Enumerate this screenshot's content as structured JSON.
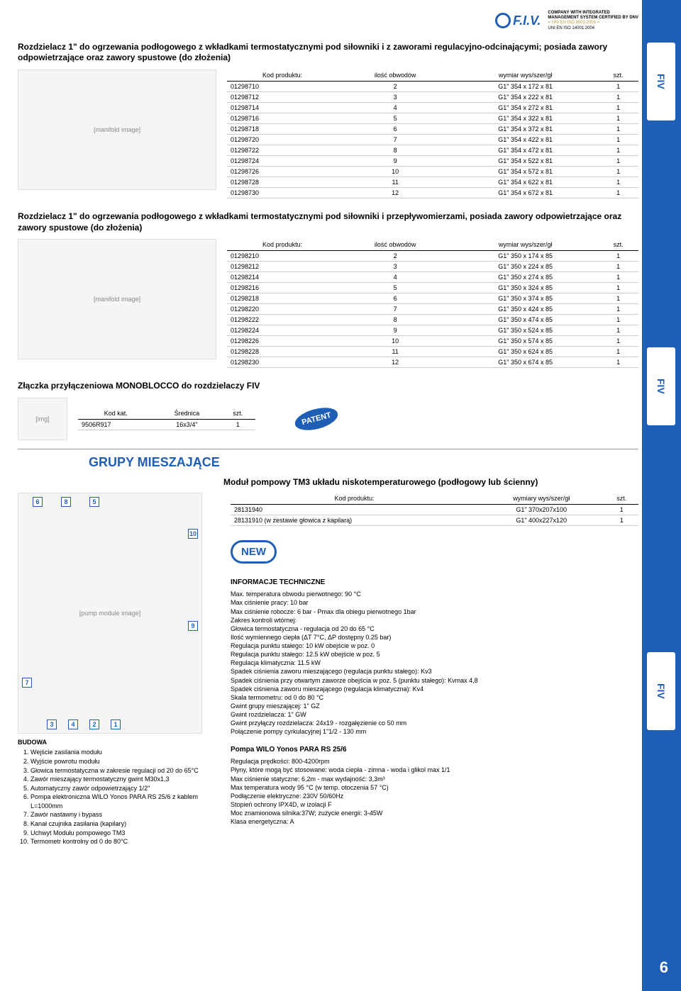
{
  "header": {
    "logo_text": "F.I.V.",
    "cert_line1": "COMPANY WITH INTEGRATED",
    "cert_line2": "MANAGEMENT SYSTEM CERTIFIED BY DNV",
    "cert_iso1": "= UNI EN ISO 9001:2008 =",
    "cert_iso2": "UNI EN ISO 14001:2004"
  },
  "page_number": "6",
  "section1": {
    "title": "Rozdzielacz 1\" do ogrzewania podłogowego z wkładkami termostatycznymi pod siłowniki i z zaworami regulacyjno-odcinającymi; posiada zawory odpowietrzające oraz zawory spustowe (do złożenia)",
    "headers": {
      "kod": "Kod produktu:",
      "ilosc": "ilość obwodów",
      "wymiar": "wymiar wys/szer/gł",
      "szt": "szt."
    },
    "rows": [
      {
        "kod": "01298710",
        "il": "2",
        "wy": "G1\" 354 x 172 x 81",
        "s": "1"
      },
      {
        "kod": "01298712",
        "il": "3",
        "wy": "G1\" 354 x 222 x 81",
        "s": "1"
      },
      {
        "kod": "01298714",
        "il": "4",
        "wy": "G1\" 354 x 272 x 81",
        "s": "1"
      },
      {
        "kod": "01298716",
        "il": "5",
        "wy": "G1\" 354 x 322 x 81",
        "s": "1"
      },
      {
        "kod": "01298718",
        "il": "6",
        "wy": "G1\" 354 x 372 x 81",
        "s": "1"
      },
      {
        "kod": "01298720",
        "il": "7",
        "wy": "G1\" 354 x 422 x 81",
        "s": "1"
      },
      {
        "kod": "01298722",
        "il": "8",
        "wy": "G1\" 354 x 472 x 81",
        "s": "1"
      },
      {
        "kod": "01298724",
        "il": "9",
        "wy": "G1\" 354 x 522 x 81",
        "s": "1"
      },
      {
        "kod": "01298726",
        "il": "10",
        "wy": "G1\" 354 x 572 x 81",
        "s": "1"
      },
      {
        "kod": "01298728",
        "il": "11",
        "wy": "G1\" 354 x 622 x 81",
        "s": "1"
      },
      {
        "kod": "01298730",
        "il": "12",
        "wy": "G1\" 354 x 672 x 81",
        "s": "1"
      }
    ]
  },
  "section2": {
    "title": "Rozdzielacz 1\" do ogrzewania podłogowego z wkładkami termostatycznymi pod siłowniki i przepływomierzami, posiada zawory odpowietrzające oraz zawory spustowe (do złożenia)",
    "headers": {
      "kod": "Kod produktu:",
      "ilosc": "ilość obwodów",
      "wymiar": "wymiar wys/szer/gł",
      "szt": "szt."
    },
    "rows": [
      {
        "kod": "01298210",
        "il": "2",
        "wy": "G1\" 350 x 174 x 85",
        "s": "1"
      },
      {
        "kod": "01298212",
        "il": "3",
        "wy": "G1\" 350 x 224 x 85",
        "s": "1"
      },
      {
        "kod": "01298214",
        "il": "4",
        "wy": "G1\" 350 x 274 x 85",
        "s": "1"
      },
      {
        "kod": "01298216",
        "il": "5",
        "wy": "G1\" 350 x 324 x 85",
        "s": "1"
      },
      {
        "kod": "01298218",
        "il": "6",
        "wy": "G1\" 350 x 374 x 85",
        "s": "1"
      },
      {
        "kod": "01298220",
        "il": "7",
        "wy": "G1\" 350 x 424 x 85",
        "s": "1"
      },
      {
        "kod": "01298222",
        "il": "8",
        "wy": "G1\" 350 x 474 x 85",
        "s": "1"
      },
      {
        "kod": "01298224",
        "il": "9",
        "wy": "G1\" 350 x 524 x 85",
        "s": "1"
      },
      {
        "kod": "01298226",
        "il": "10",
        "wy": "G1\" 350 x 574 x 85",
        "s": "1"
      },
      {
        "kod": "01298228",
        "il": "11",
        "wy": "G1\" 350 x 624 x 85",
        "s": "1"
      },
      {
        "kod": "01298230",
        "il": "12",
        "wy": "G1\" 350 x 674 x 85",
        "s": "1"
      }
    ]
  },
  "monoblocco": {
    "title": "Złączka przyłączeniowa MONOBLOCCO do rozdzielaczy FIV",
    "headers": {
      "kod": "Kod kat.",
      "sr": "Średnica",
      "szt": "szt."
    },
    "row": {
      "kod": "9506R917",
      "sr": "16x3/4\"",
      "szt": "1"
    },
    "patent": "PATENT"
  },
  "grupy": {
    "heading": "GRUPY MIESZAJĄCE",
    "module_title": "Moduł pompowy TM3 układu niskotemperaturowego (podłogowy lub ścienny)",
    "headers": {
      "kod": "Kod produktu:",
      "wy": "wymiary wys/szer/gł",
      "szt": "szt."
    },
    "rows": [
      {
        "kod": "28131940",
        "wy": "G1\" 370x207x100",
        "s": "1"
      },
      {
        "kod": "28131910 (w zestawie głowica z kapilarą)",
        "wy": "G1\" 400x227x120",
        "s": "1"
      }
    ],
    "new_label": "NEW",
    "callouts": [
      "6",
      "8",
      "5",
      "10",
      "9",
      "7",
      "3",
      "4",
      "2",
      "1"
    ],
    "budowa_title": "BUDOWA",
    "budowa_items": [
      "Wejście zasilania modułu",
      "Wyjście powrotu modułu",
      "Głowica termostatyczna w zakresie regulacji od 20 do 65°C",
      "Zawór mieszający termostatyczny gwint M30x1,3",
      "Automatyczny zawór odpowietrzający 1/2\"",
      "Pompa elektroniczna WILO Yonos PARA RS 25/6 z kablem L=1000mm",
      "Zawór nastawny i bypass",
      "Kanał czujnika zasilania (kapilary)",
      "Uchwyt Modułu pompowego TM3",
      "Termometr kontrolny od 0 do 80°C"
    ],
    "info_title": "INFORMACJE TECHNICZNE",
    "info_lines": [
      "Max. temperatura obwodu pierwotnego: 90 °C",
      "Max ciśnienie pracy: 10 bar",
      "Max ciśnienie robocze: 6 bar - Pmax dla obiegu pierwotnego 1bar",
      "Zakres kontroli wtórnej:",
      "Głowica termostatyczna - regulacja od 20 do 65 °C",
      "Ilość wymiennego ciepła (ΔT 7°C, ΔP dostępny 0.25 bar)",
      "Regulacja punktu stałego: 10 kW obejście w poz. 0",
      "Regulacja punktu stałego: 12.5 kW obejście w poz. 5",
      "Regulacja klimatyczna: 11.5 kW",
      "Spadek ciśnienia zaworu mieszającego (regulacja punktu stałego): Kv3",
      "Spadek ciśnienia przy otwartym zaworze obejścia w poz. 5 (punktu stałego): Kvmax 4,8",
      "Spadek ciśnienia zaworu mieszającego (regulacja klimatyczna): Kv4",
      "Skala termometru: od 0 do 80 °C",
      "Gwint grupy mieszającej: 1\" GZ",
      "Gwint rozdzielacza: 1\" GW",
      "Gwint przyłączy rozdzielacza: 24x19 - rozgałęzienie co 50 mm",
      "Połączenie pompy cyrkulacyjnej 1\"1/2 - 130 mm"
    ],
    "pompa_title": "Pompa WILO Yonos PARA RS 25/6",
    "pompa_lines": [
      "Regulacja prędkości: 800-4200rpm",
      "Płyny, które mogą być stosowane: woda ciepła - zimna - woda i glikol max 1/1",
      "Max ciśnienie statyczne: 6,2m - max wydajność: 3,3m³",
      "Max temperatura wody 95 °C (w temp. otoczenia 57 °C)",
      "Podłączenie elektryczne: 230V 50/60Hz",
      "Stopień ochrony IPX4D, w izolacji F",
      "Moc znamionowa silnika:37W; zużycie energii: 3-45W",
      "Klasa energetyczna: A"
    ]
  }
}
